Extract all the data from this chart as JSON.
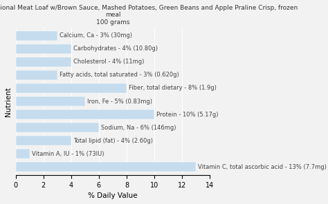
{
  "title_line1": "HEALTHY CHOICE Traditional Meat Loaf w/Brown Sauce, Mashed Potatoes, Green Beans and Apple Praline Crisp, frozen",
  "title_line2": "meal",
  "title_line3": "100 grams",
  "xlabel": "% Daily Value",
  "ylabel": "Nutrient",
  "xlim": [
    0,
    14
  ],
  "xticks": [
    0,
    2,
    4,
    6,
    8,
    10,
    12,
    14
  ],
  "bar_color": "#c5dcee",
  "background_color": "#f2f2f2",
  "nutrients": [
    "Calcium, Ca - 3% (30mg)",
    "Carbohydrates - 4% (10.80g)",
    "Cholesterol - 4% (11mg)",
    "Fatty acids, total saturated - 3% (0.620g)",
    "Fiber, total dietary - 8% (1.9g)",
    "Iron, Fe - 5% (0.83mg)",
    "Protein - 10% (5.17g)",
    "Sodium, Na - 6% (146mg)",
    "Total lipid (fat) - 4% (2.60g)",
    "Vitamin A, IU - 1% (73IU)",
    "Vitamin C, total ascorbic acid - 13% (7.7mg)"
  ],
  "values": [
    3,
    4,
    4,
    3,
    8,
    5,
    10,
    6,
    4,
    1,
    13
  ],
  "title_fontsize": 6.5,
  "axis_label_fontsize": 7.5,
  "tick_fontsize": 7,
  "bar_label_fontsize": 6.0
}
